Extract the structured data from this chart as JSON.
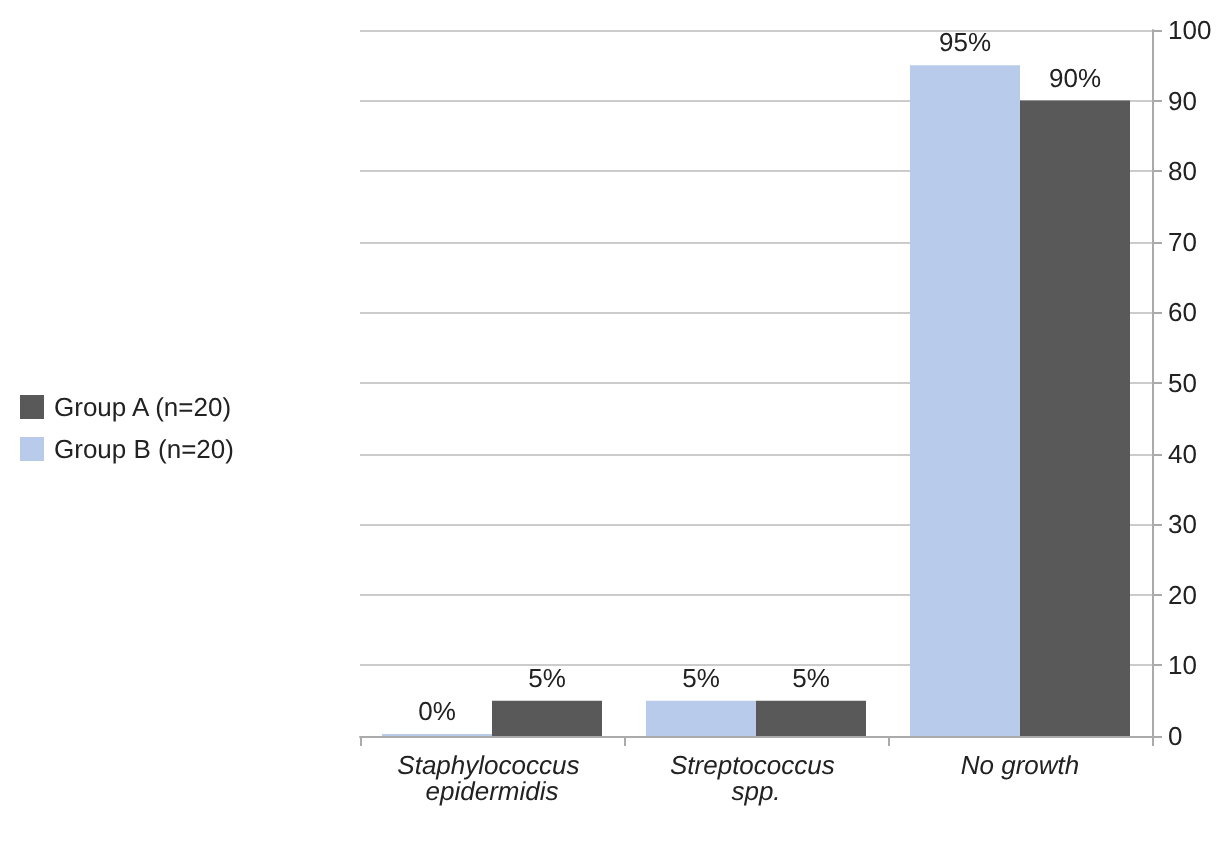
{
  "chart_data": {
    "type": "bar",
    "categories": [
      "Staphylococcus epidermidis",
      "Streptococcus spp.",
      "No growth"
    ],
    "series": [
      {
        "name": "Group B (n=20)",
        "color": "#b8cbea",
        "values": [
          0,
          5,
          95
        ],
        "value_labels": [
          "0%",
          "5%",
          "95%"
        ]
      },
      {
        "name": "Group A (n=20)",
        "color": "#595959",
        "values": [
          5,
          5,
          90
        ],
        "value_labels": [
          "5%",
          "5%",
          "90%"
        ]
      }
    ],
    "ylim": [
      0,
      100
    ],
    "yticks": [
      0,
      10,
      20,
      30,
      40,
      50,
      60,
      70,
      80,
      90,
      100
    ],
    "grid": "y",
    "legend": "left"
  }
}
